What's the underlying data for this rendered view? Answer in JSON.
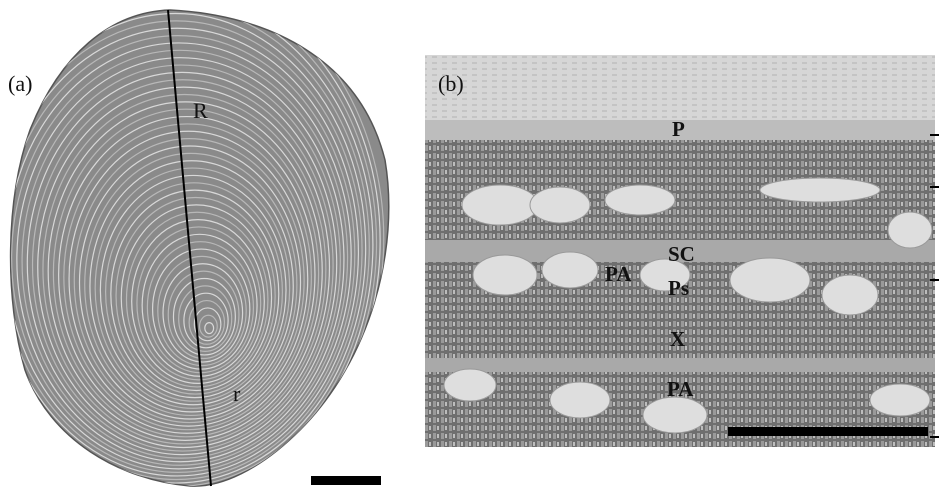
{
  "panel_a": {
    "label": "(a)",
    "annotations": [
      "R",
      "r"
    ]
  },
  "panel_b": {
    "label": "(b)",
    "annotations": [
      "P",
      "SC",
      "Ps",
      "PA",
      "X",
      "PA"
    ]
  }
}
